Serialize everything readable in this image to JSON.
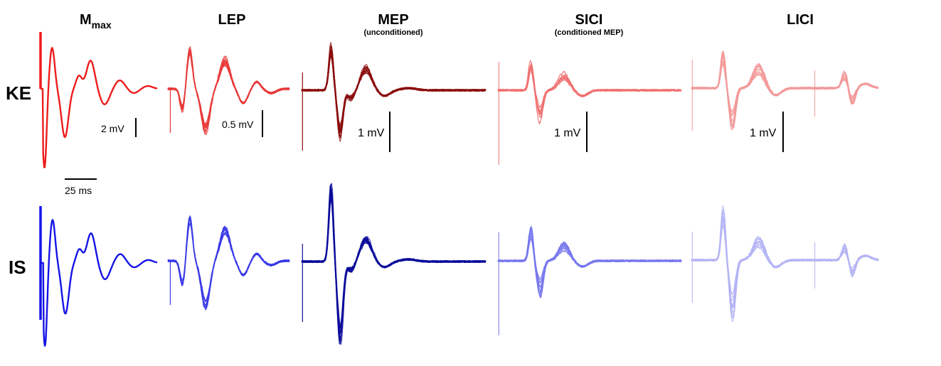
{
  "columns": [
    {
      "id": "mmax",
      "title": "M",
      "title_sub": "max",
      "subtitle": ""
    },
    {
      "id": "lep",
      "title": "LEP",
      "title_sub": "",
      "subtitle": ""
    },
    {
      "id": "mep",
      "title": "MEP",
      "title_sub": "",
      "subtitle": "(unconditioned)"
    },
    {
      "id": "sici",
      "title": "SICI",
      "title_sub": "",
      "subtitle": "(conditioned MEP)"
    },
    {
      "id": "lici",
      "title": "LICI",
      "title_sub": "",
      "subtitle": ""
    }
  ],
  "rows": [
    {
      "id": "ke",
      "label": "KE"
    },
    {
      "id": "is",
      "label": "IS"
    }
  ],
  "scale_bars": {
    "mmax_amp": "2 mV",
    "lep_amp": "0.5 mV",
    "mep_amp": "1 mV",
    "sici_amp": "1 mV",
    "lici_amp": "1 mV",
    "time": "25 ms"
  },
  "colors": {
    "ke": {
      "mmax": "#ee1c1c",
      "lep": "#e83a3a",
      "mep": "#8b0d0d",
      "sici": "#f07070",
      "lici": "#f39a9a"
    },
    "is": {
      "mmax": "#1414e6",
      "lep": "#3a3ae8",
      "mep": "#0a0a9a",
      "sici": "#7878ee",
      "lici": "#b4b4f5"
    }
  },
  "traces": {
    "ke": {
      "mmax": 1,
      "lep": 14,
      "mep": 16,
      "sici": 14,
      "lici": 16
    },
    "is": {
      "mmax": 1,
      "lep": 14,
      "mep": 18,
      "sici": 16,
      "lici": 16
    }
  }
}
